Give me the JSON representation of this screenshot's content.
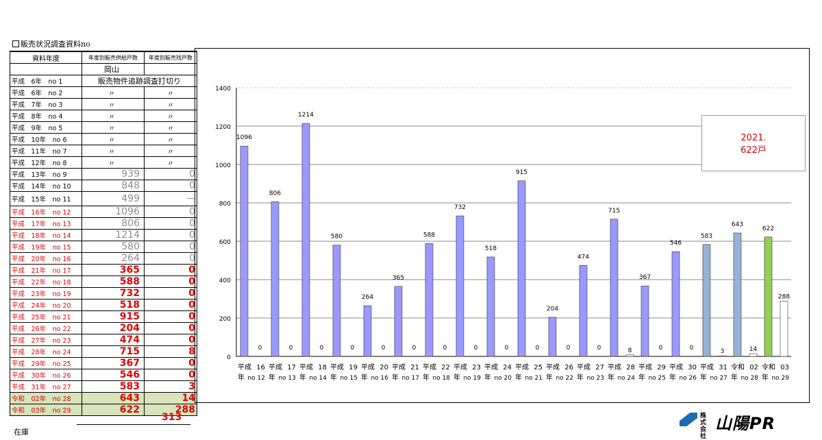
{
  "heading": "販売状況調査資料no",
  "table": {
    "headers": [
      "資料年度",
      "年度別販売供給戸数",
      "年度別販売残戸数"
    ],
    "rows": [
      {
        "label": "",
        "supply": "岡山",
        "remain": "",
        "style": "center"
      },
      {
        "label": "平成　6年　no 1",
        "supply": "販売物件追跡調査打切り",
        "style": "note"
      },
      {
        "label": "平成　6年　no 2",
        "supply": "〃",
        "remain": "〃",
        "style": "ditto"
      },
      {
        "label": "平成　7年　no 3",
        "supply": "〃",
        "remain": "〃",
        "style": "ditto"
      },
      {
        "label": "平成　8年　no 4",
        "supply": "〃",
        "remain": "〃",
        "style": "ditto"
      },
      {
        "label": "平成　9年　no 5",
        "supply": "〃",
        "remain": "〃",
        "style": "ditto"
      },
      {
        "label": "平成　10年　no 6",
        "supply": "〃",
        "remain": "〃",
        "style": "ditto"
      },
      {
        "label": "平成　11年　no 7",
        "supply": "〃",
        "remain": "〃",
        "style": "ditto"
      },
      {
        "label": "平成　12年　no 8",
        "supply": "〃",
        "remain": "〃",
        "style": "ditto"
      },
      {
        "label": "平成　13年　no 9",
        "supply": "939",
        "remain": "0",
        "style": "gray"
      },
      {
        "label": "平成　14年　no 10",
        "supply": "848",
        "remain": "0",
        "style": "gray"
      },
      {
        "label": "平成　15年　no 11",
        "supply": "499",
        "remain": "－",
        "style": "gray"
      },
      {
        "label": "平成　16年　no 12",
        "supply": "1096",
        "remain": "0",
        "style": "gray red-label"
      },
      {
        "label": "平成　17年　no 13",
        "supply": "806",
        "remain": "0",
        "style": "gray red-label"
      },
      {
        "label": "平成　18年　no 14",
        "supply": "1214",
        "remain": "0",
        "style": "gray red-label"
      },
      {
        "label": "平成　19年　no 15",
        "supply": "580",
        "remain": "0",
        "style": "gray red-label"
      },
      {
        "label": "平成　20年　no 16",
        "supply": "264",
        "remain": "0",
        "style": "gray red-label"
      },
      {
        "label": "平成　21年　no 17",
        "supply": "365",
        "remain": "0",
        "style": "red"
      },
      {
        "label": "平成　22年　no 18",
        "supply": "588",
        "remain": "0",
        "style": "red"
      },
      {
        "label": "平成　23年　no 19",
        "supply": "732",
        "remain": "0",
        "style": "red"
      },
      {
        "label": "平成　24年　no 20",
        "supply": "518",
        "remain": "0",
        "style": "red"
      },
      {
        "label": "平成　25年　no 21",
        "supply": "915",
        "remain": "0",
        "style": "red"
      },
      {
        "label": "平成　26年　no 22",
        "supply": "204",
        "remain": "0",
        "style": "red"
      },
      {
        "label": "平成　27年　no 23",
        "supply": "474",
        "remain": "0",
        "style": "red"
      },
      {
        "label": "平成　28年　no 24",
        "supply": "715",
        "remain": "8",
        "style": "red"
      },
      {
        "label": "平成　29年　no 25",
        "supply": "367",
        "remain": "0",
        "style": "red"
      },
      {
        "label": "平成　30年　no 26",
        "supply": "546",
        "remain": "0",
        "style": "red"
      },
      {
        "label": "平成　31年　no 27",
        "supply": "583",
        "remain": "3",
        "style": "red"
      },
      {
        "label": "令和　02年　no 28",
        "supply": "643",
        "remain": "14",
        "style": "red green"
      },
      {
        "label": "令和　03年　no 29",
        "supply": "622",
        "remain": "288",
        "style": "red green"
      }
    ],
    "extra_value": "313",
    "extra_label": "在庫"
  },
  "callout": {
    "line1": "2021.",
    "line2": "622戸"
  },
  "logo": {
    "prefix_top": "株式",
    "prefix_bottom": "会社",
    "name": "山陽PR"
  },
  "colors": {
    "supply_bar": "#9999ff",
    "recent_bar": "#95b3d7",
    "latest_bar": "#92d050",
    "remain_bar": "#ffffff",
    "red_text": "#e00000"
  },
  "chart_data": {
    "type": "bar",
    "ylim": [
      0,
      1400
    ],
    "yticks": [
      0,
      200,
      400,
      600,
      800,
      1000,
      1200,
      1400
    ],
    "grid": true,
    "categories": [
      [
        "平成",
        "16",
        "年",
        "no 12"
      ],
      [
        "平成",
        "17",
        "年",
        "no 13"
      ],
      [
        "平成",
        "18",
        "年",
        "no 14"
      ],
      [
        "平成",
        "19",
        "年",
        "no 15"
      ],
      [
        "平成",
        "20",
        "年",
        "no 16"
      ],
      [
        "平成",
        "21",
        "年",
        "no 17"
      ],
      [
        "平成",
        "22",
        "年",
        "no 18"
      ],
      [
        "平成",
        "23",
        "年",
        "no 19"
      ],
      [
        "平成",
        "24",
        "年",
        "no 20"
      ],
      [
        "平成",
        "25",
        "年",
        "no 21"
      ],
      [
        "平成",
        "26",
        "年",
        "no 22"
      ],
      [
        "平成",
        "27",
        "年",
        "no 23"
      ],
      [
        "平成",
        "28",
        "年",
        "no 24"
      ],
      [
        "平成",
        "29",
        "年",
        "no 25"
      ],
      [
        "平成",
        "30",
        "年",
        "no 26"
      ],
      [
        "平成",
        "31",
        "年",
        "no 27"
      ],
      [
        "令和",
        "02",
        "年",
        "no 28"
      ],
      [
        "令和",
        "03",
        "年",
        "no 29"
      ]
    ],
    "series": [
      {
        "values": [
          1096,
          806,
          1214,
          580,
          264,
          365,
          588,
          732,
          518,
          915,
          204,
          474,
          715,
          367,
          546,
          583,
          643,
          622
        ]
      },
      {
        "values": [
          0,
          0,
          0,
          0,
          0,
          0,
          0,
          0,
          0,
          0,
          0,
          0,
          8,
          0,
          0,
          3,
          14,
          288
        ]
      }
    ]
  }
}
